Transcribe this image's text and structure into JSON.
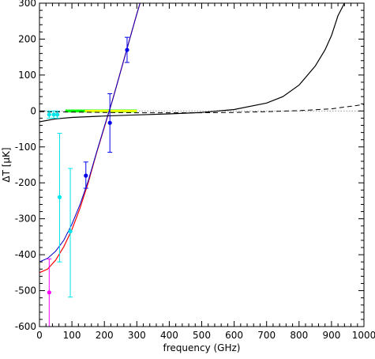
{
  "chart_data": {
    "type": "scatter",
    "title": "",
    "xlabel": "frequency (GHz)",
    "ylabel": "ΔT [μK]",
    "xlim": [
      0,
      1000
    ],
    "ylim": [
      -600,
      300
    ],
    "grid": false,
    "legend": "none",
    "x_ticks": [
      0,
      100,
      200,
      300,
      400,
      500,
      600,
      700,
      800,
      900,
      1000
    ],
    "y_ticks": [
      300,
      200,
      100,
      0,
      -100,
      -200,
      -300,
      -400,
      -500,
      -600
    ],
    "zero_line": {
      "y": 0,
      "color": "#999999",
      "style": "dotted"
    },
    "series": [
      {
        "kind": "errorbar",
        "color": "#ff00ff",
        "points": [
          {
            "x": 30,
            "y": -505,
            "ylo": -600,
            "yhi": -412
          }
        ]
      },
      {
        "kind": "errorbar",
        "color": "#00e5ee",
        "points": [
          {
            "x": 30,
            "y": -10,
            "ylo": -20,
            "yhi": 0
          },
          {
            "x": 44,
            "y": -10,
            "ylo": -20,
            "yhi": 0
          },
          {
            "x": 55,
            "y": -10,
            "ylo": -20,
            "yhi": 0
          },
          {
            "x": 62,
            "y": -240,
            "ylo": -420,
            "yhi": -62
          },
          {
            "x": 95,
            "y": -335,
            "ylo": -518,
            "yhi": -160
          }
        ]
      },
      {
        "kind": "errorbar",
        "color": "#0000ee",
        "points": [
          {
            "x": 143,
            "y": -180,
            "ylo": -215,
            "yhi": -142
          },
          {
            "x": 217,
            "y": -33,
            "ylo": -115,
            "yhi": 48
          },
          {
            "x": 270,
            "y": 170,
            "ylo": 135,
            "yhi": 205
          }
        ]
      },
      {
        "kind": "band",
        "color": "#00ff00",
        "x": [
          80,
          300
        ],
        "y": [
          -4,
          4
        ]
      },
      {
        "kind": "band",
        "color": "#ffff00",
        "x": [
          140,
          300
        ],
        "y": [
          -3,
          3
        ]
      },
      {
        "kind": "curve",
        "color": "#ff0000",
        "width": 1.2,
        "x": [
          0,
          25,
          50,
          75,
          100,
          125,
          150,
          175,
          200,
          225,
          250,
          275,
          300,
          310
        ],
        "y": [
          -450,
          -440,
          -415,
          -378,
          -330,
          -270,
          -200,
          -120,
          -45,
          30,
          110,
          190,
          270,
          300
        ]
      },
      {
        "kind": "curve",
        "color": "#0000cc",
        "width": 1,
        "x": [
          0,
          25,
          50,
          75,
          100,
          125,
          150,
          175,
          200,
          225,
          250,
          275,
          300,
          310
        ],
        "y": [
          -420,
          -410,
          -390,
          -360,
          -315,
          -260,
          -195,
          -118,
          -43,
          30,
          110,
          190,
          270,
          300
        ]
      },
      {
        "kind": "curve",
        "color": "#000000",
        "width": 1.2,
        "x": [
          0,
          50,
          100,
          200,
          300,
          400,
          500,
          600,
          700,
          750,
          800,
          850,
          880,
          900,
          920,
          940
        ],
        "y": [
          -30,
          -22,
          -18,
          -14,
          -11,
          -8,
          -4,
          4,
          22,
          40,
          72,
          125,
          170,
          210,
          265,
          300
        ]
      },
      {
        "kind": "curve",
        "color": "#000000",
        "width": 1,
        "style": "dashed",
        "x": [
          0,
          100,
          200,
          300,
          400,
          500,
          600,
          700,
          800,
          900,
          1000
        ],
        "y": [
          -2,
          -3,
          -4,
          -5,
          -5,
          -5,
          -4,
          -2,
          1,
          6,
          18
        ]
      }
    ]
  }
}
